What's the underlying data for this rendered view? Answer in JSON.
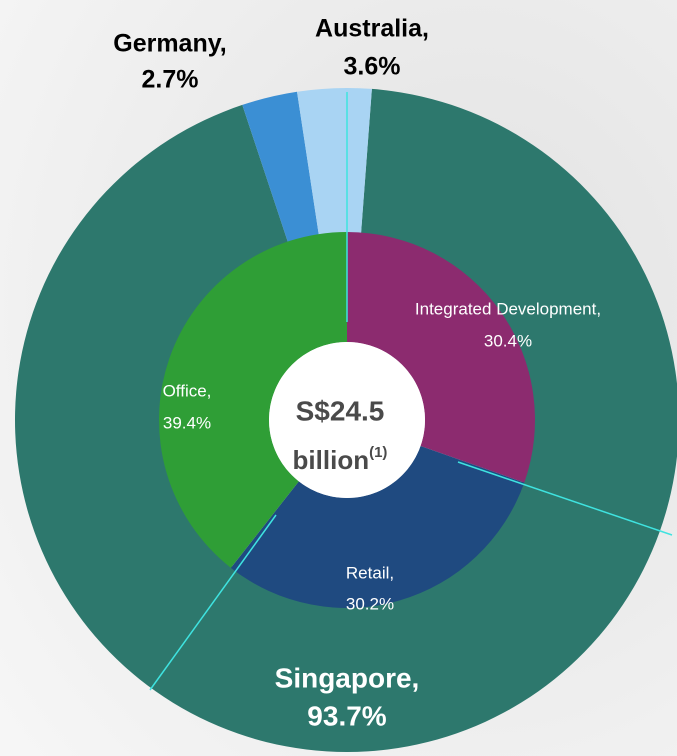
{
  "chart_data": [
    {
      "type": "donut",
      "categories": [
        "Singapore,",
        "Germany,",
        "Australia,"
      ],
      "values": [
        93.7,
        2.7,
        3.6
      ],
      "value_labels": [
        "93.7%",
        "2.7%",
        "3.6%"
      ],
      "colors": [
        "#2d786d",
        "#3b8fd4",
        "#a9d4f3"
      ]
    },
    {
      "type": "donut",
      "categories": [
        "Integrated Development,",
        "Retail,",
        "Office,"
      ],
      "values": [
        30.4,
        30.2,
        39.4
      ],
      "value_labels": [
        "30.4%",
        "30.2%",
        "39.4%"
      ],
      "colors": [
        "#8c2b6f",
        "#1f4a80",
        "#2f9e36"
      ]
    }
  ],
  "center": {
    "value": "S$24.5",
    "unit": "billion",
    "footnote": "(1)"
  }
}
